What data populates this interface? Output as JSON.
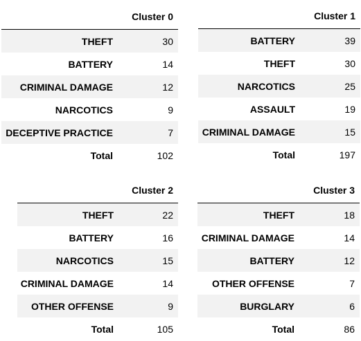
{
  "clusters": [
    {
      "title": "Cluster 0",
      "rows": [
        {
          "label": "THEFT",
          "value": "30"
        },
        {
          "label": "BATTERY",
          "value": "14"
        },
        {
          "label": "CRIMINAL DAMAGE",
          "value": "12"
        },
        {
          "label": "NARCOTICS",
          "value": "9"
        },
        {
          "label": "DECEPTIVE PRACTICE",
          "value": "7"
        }
      ],
      "total_label": "Total",
      "total_value": "102"
    },
    {
      "title": "Cluster 1",
      "rows": [
        {
          "label": "BATTERY",
          "value": "39"
        },
        {
          "label": "THEFT",
          "value": "30"
        },
        {
          "label": "NARCOTICS",
          "value": "25"
        },
        {
          "label": "ASSAULT",
          "value": "19"
        },
        {
          "label": "CRIMINAL DAMAGE",
          "value": "15"
        }
      ],
      "total_label": "Total",
      "total_value": "197"
    },
    {
      "title": "Cluster 2",
      "rows": [
        {
          "label": "THEFT",
          "value": "22"
        },
        {
          "label": "BATTERY",
          "value": "16"
        },
        {
          "label": "NARCOTICS",
          "value": "15"
        },
        {
          "label": "CRIMINAL DAMAGE",
          "value": "14"
        },
        {
          "label": "OTHER OFFENSE",
          "value": "9"
        }
      ],
      "total_label": "Total",
      "total_value": "105"
    },
    {
      "title": "Cluster 3",
      "rows": [
        {
          "label": "THEFT",
          "value": "18"
        },
        {
          "label": "CRIMINAL DAMAGE",
          "value": "14"
        },
        {
          "label": "BATTERY",
          "value": "12"
        },
        {
          "label": "OTHER OFFENSE",
          "value": "7"
        },
        {
          "label": "BURGLARY",
          "value": "6"
        }
      ],
      "total_label": "Total",
      "total_value": "86"
    }
  ]
}
